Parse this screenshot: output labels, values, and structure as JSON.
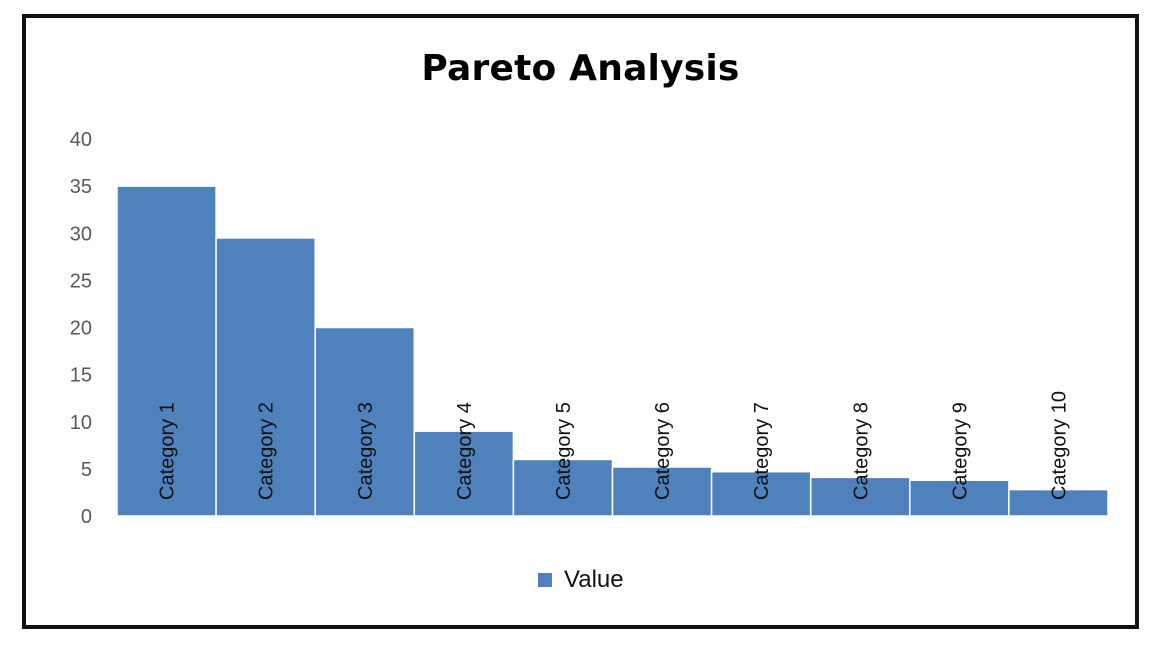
{
  "colors": {
    "bar": "#4f81bd",
    "bar_edge": "#ffffff",
    "axis_text": "#595959",
    "frame": "#111111"
  },
  "chart_data": {
    "type": "bar",
    "title": "Pareto Analysis",
    "xlabel": "",
    "ylabel": "",
    "categories": [
      "Category 1",
      "Category 2",
      "Category 3",
      "Category 4",
      "Category 5",
      "Category 6",
      "Category 7",
      "Category 8",
      "Category 9",
      "Category 10"
    ],
    "series": [
      {
        "name": "Value",
        "values": [
          35,
          29.5,
          20,
          9,
          6,
          5.2,
          4.7,
          4.1,
          3.8,
          2.8
        ]
      }
    ],
    "ylim": [
      0,
      40
    ],
    "yticks": [
      "0",
      "5",
      "10",
      "15",
      "20",
      "25",
      "30",
      "35",
      "40"
    ],
    "grid": false,
    "legend_position": "bottom"
  }
}
